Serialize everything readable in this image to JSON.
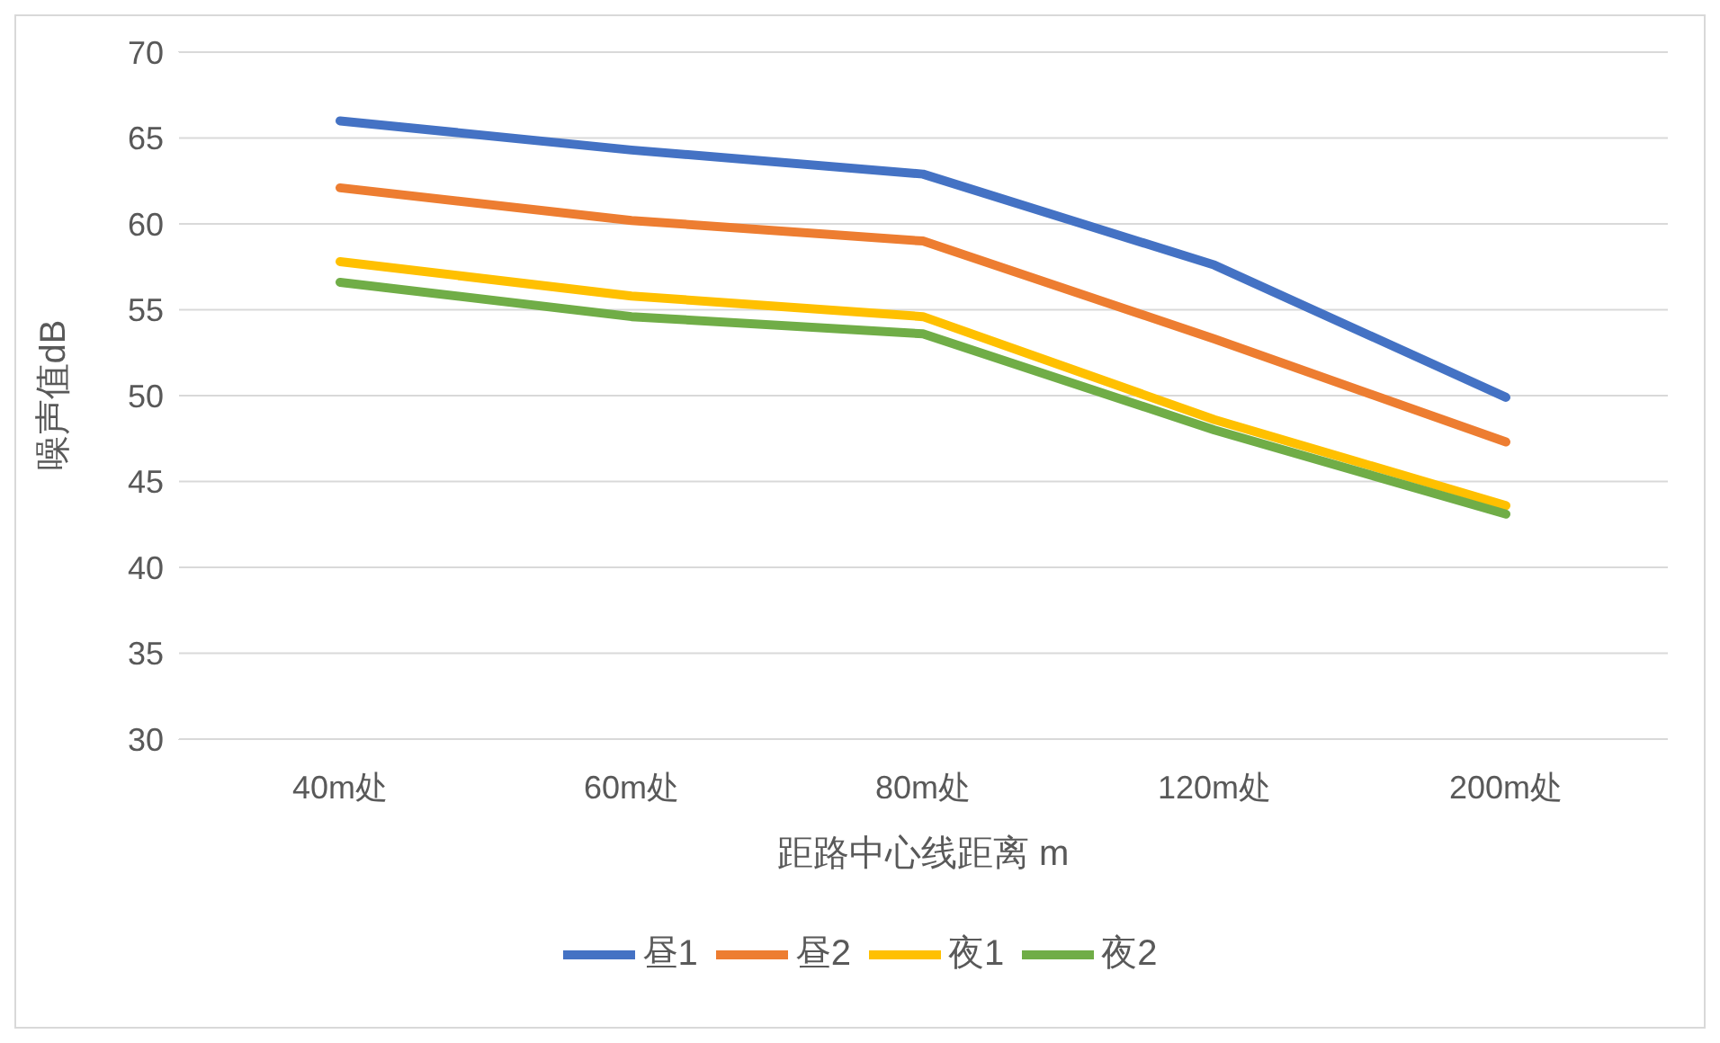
{
  "chart_data": {
    "type": "line",
    "xlabel": "距路中心线距离 m",
    "ylabel": "噪声值dB",
    "categories": [
      "40m处",
      "60m处",
      "80m处",
      "120m处",
      "200m处"
    ],
    "series": [
      {
        "name": "昼1",
        "color": "#4472c4",
        "values": [
          66.0,
          64.3,
          62.9,
          57.6,
          49.9
        ]
      },
      {
        "name": "昼2",
        "color": "#ed7d31",
        "values": [
          62.1,
          60.2,
          59.0,
          53.3,
          47.3
        ]
      },
      {
        "name": "夜1",
        "color": "#ffc000",
        "values": [
          57.8,
          55.8,
          54.6,
          48.6,
          43.6
        ]
      },
      {
        "name": "夜2",
        "color": "#70ad47",
        "values": [
          56.6,
          54.6,
          53.6,
          48.0,
          43.1
        ]
      }
    ],
    "ylim": [
      30,
      70
    ],
    "yticks": [
      30,
      35,
      40,
      45,
      50,
      55,
      60,
      65,
      70
    ],
    "grid": "y",
    "legend": "bottom",
    "marker": "none",
    "line_style": "solid"
  }
}
